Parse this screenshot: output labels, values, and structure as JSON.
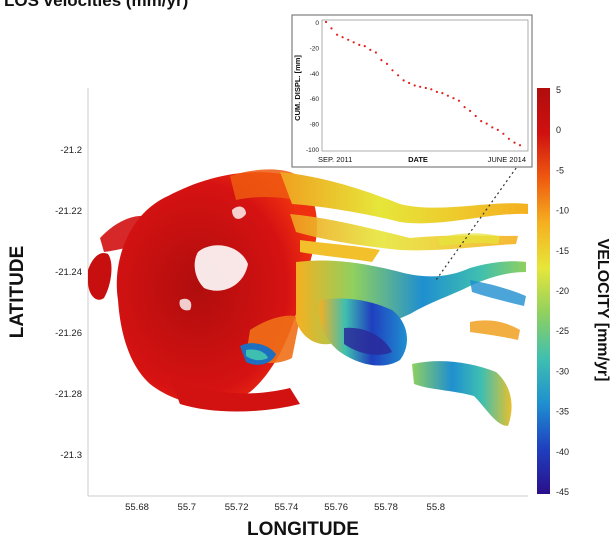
{
  "title": "LOS velocities (mm/yr)",
  "map": {
    "xlabel": "LONGITUDE",
    "ylabel": "LATITUDE",
    "xticks": [
      "55.68",
      "55.7",
      "55.72",
      "55.74",
      "55.76",
      "55.78",
      "55.8"
    ],
    "yticks": [
      "-21.2",
      "-21.22",
      "-21.24",
      "-21.26",
      "-21.28",
      "-21.3"
    ]
  },
  "colorbar": {
    "label": "VELOCITY [mm/yr]",
    "ticks": [
      "5",
      "0",
      "-5",
      "-10",
      "-15",
      "-20",
      "-25",
      "-30",
      "-35",
      "-40",
      "-45"
    ],
    "range": [
      -45,
      5
    ],
    "colors": [
      "#2a0f8a",
      "#1f3fbf",
      "#1f8fd0",
      "#3fbfb0",
      "#8fd060",
      "#e6e63a",
      "#f5b020",
      "#ee5a10",
      "#d01010",
      "#b00d0d"
    ]
  },
  "inset": {
    "ylabel": "CUM. DISPL. [mm]",
    "xlabel": "DATE",
    "x_start_label": "SEP. 2011",
    "x_end_label": "JUNE 2014",
    "yticks": [
      "0",
      "-20",
      "-40",
      "-60",
      "-80",
      "-100"
    ],
    "ylim": [
      -100,
      0
    ],
    "series_color": "#e0201e",
    "values": [
      0,
      -5,
      -10,
      -12,
      -14,
      -16,
      -18,
      -19,
      -22,
      -24,
      -30,
      -33,
      -38,
      -42,
      -46,
      -48,
      -50,
      -51,
      -52,
      -53,
      -55,
      -56,
      -58,
      -60,
      -62,
      -67,
      -70,
      -74,
      -78,
      -80,
      -83,
      -85,
      -88,
      -92,
      -95,
      -97
    ]
  }
}
